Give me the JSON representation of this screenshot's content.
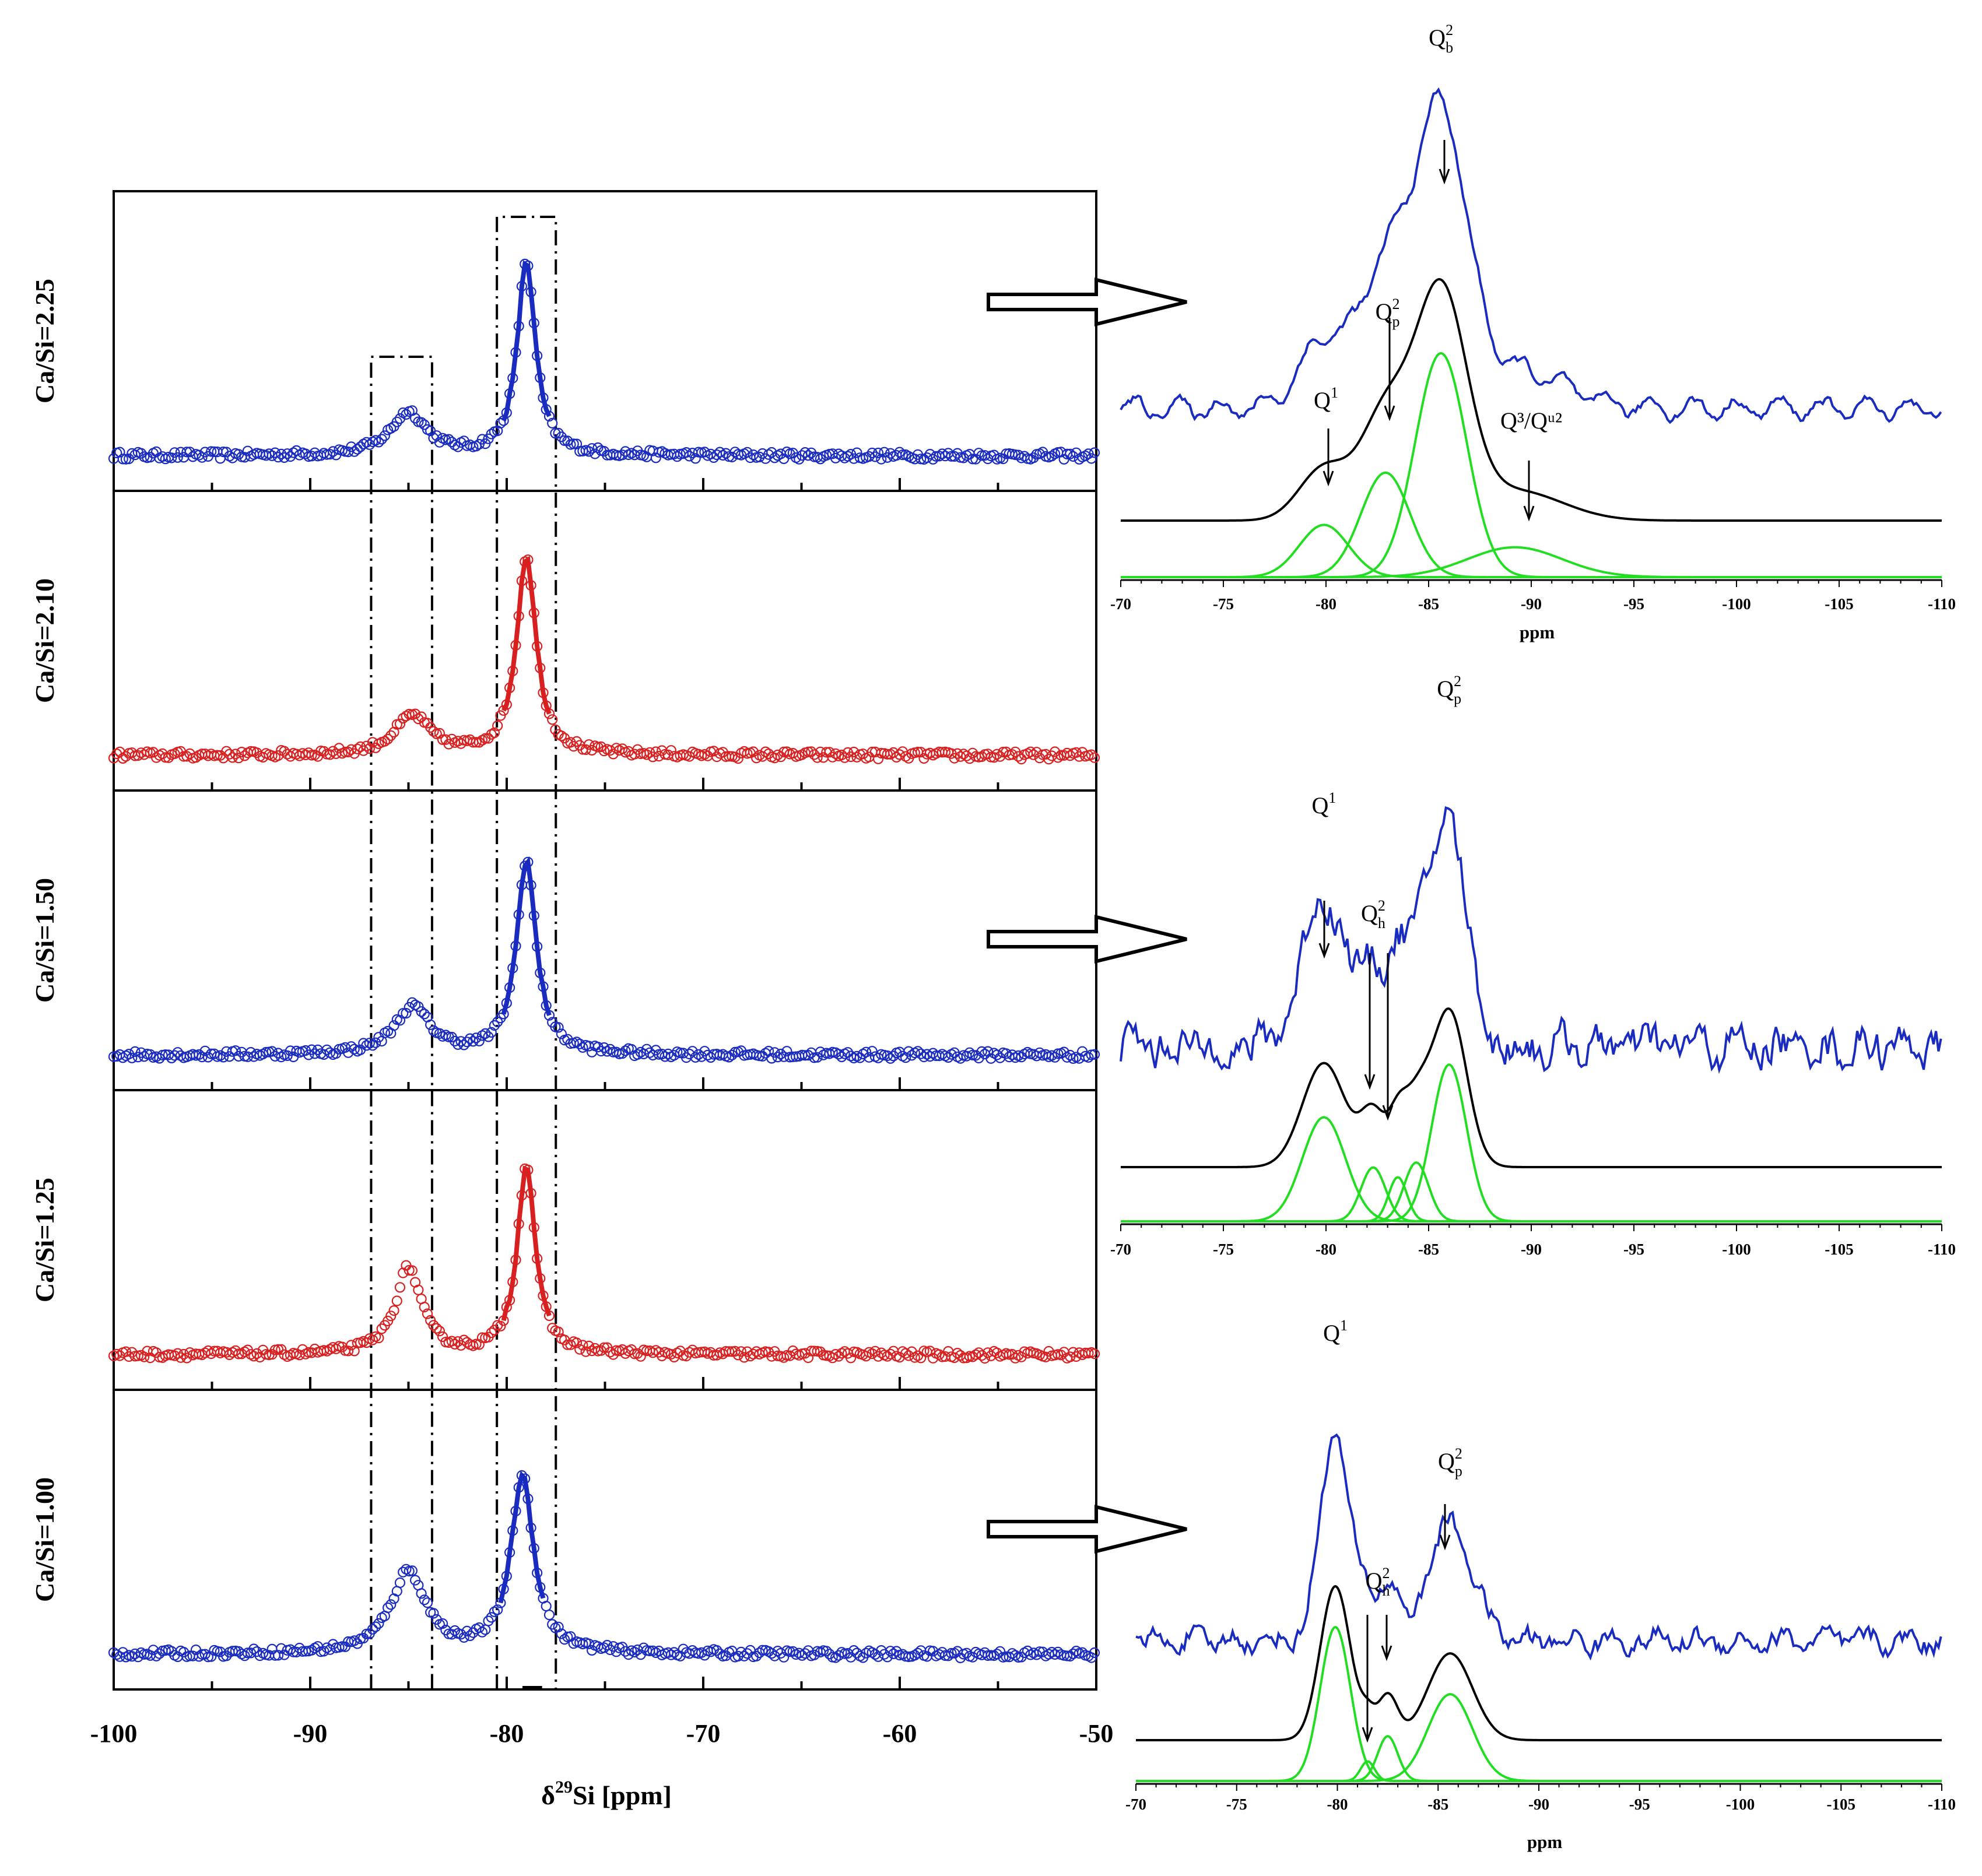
{
  "colors": {
    "blue": "#1a2bc0",
    "red": "#d92020",
    "green": "#22dd22",
    "black": "#000000"
  },
  "chart_data": [
    {
      "type": "scatter",
      "title": "",
      "xlabel_parts": {
        "pre": "δ",
        "sup": "29",
        "post": "Si [ppm]"
      },
      "xlim": [
        -100,
        -50
      ],
      "xticks": [
        -100,
        -90,
        -80,
        -70,
        -60,
        -50
      ],
      "row_labels": [
        "Ca/Si=2.25",
        "Ca/Si=2.10",
        "Ca/Si=1.50",
        "Ca/Si=1.25",
        "Ca/Si=1.00"
      ],
      "series": [
        {
          "name": "Ca/Si=2.25",
          "color": "blue",
          "peaks": [
            {
              "x": -79.0,
              "height": 0.9,
              "width": 0.55
            },
            {
              "x": -85.0,
              "height": 0.2,
              "width": 1.1
            }
          ]
        },
        {
          "name": "Ca/Si=2.10",
          "color": "red",
          "peaks": [
            {
              "x": -79.0,
              "height": 0.92,
              "width": 0.6
            },
            {
              "x": -84.8,
              "height": 0.18,
              "width": 1.1
            }
          ]
        },
        {
          "name": "Ca/Si=1.50",
          "color": "blue",
          "peaks": [
            {
              "x": -79.0,
              "height": 0.9,
              "width": 0.6
            },
            {
              "x": -84.8,
              "height": 0.22,
              "width": 1.1
            }
          ]
        },
        {
          "name": "Ca/Si=1.25",
          "color": "red",
          "peaks": [
            {
              "x": -79.0,
              "height": 0.88,
              "width": 0.55
            },
            {
              "x": -85.0,
              "height": 0.4,
              "width": 0.8
            }
          ]
        },
        {
          "name": "Ca/Si=1.00",
          "color": "blue",
          "peaks": [
            {
              "x": -79.2,
              "height": 0.82,
              "width": 0.7
            },
            {
              "x": -85.0,
              "height": 0.38,
              "width": 1.1
            }
          ]
        }
      ],
      "annotation_boxes_ppm": [
        [
          -86.9,
          -83.8
        ],
        [
          -80.5,
          -77.5
        ]
      ]
    },
    {
      "type": "line",
      "xlabel": "ppm",
      "xlim": [
        -70,
        -110
      ],
      "xticks": [
        -70,
        -75,
        -80,
        -85,
        -90,
        -95,
        -100,
        -105,
        -110
      ],
      "components": [
        {
          "center": -79.9,
          "height": 0.28,
          "width": 1.2
        },
        {
          "center": -82.9,
          "height": 0.56,
          "width": 1.2
        },
        {
          "center": -85.6,
          "height": 1.2,
          "width": 1.25
        },
        {
          "center": -89.2,
          "height": 0.16,
          "width": 2.3
        }
      ],
      "labels": [
        {
          "base": "Q",
          "sup": "2",
          "sub": "b",
          "x": -85.6
        },
        {
          "base": "Q",
          "sup": "2",
          "sub": "p",
          "x": -83.0
        },
        {
          "base": "Q",
          "sup": "1",
          "sub": "",
          "x": -80.0
        },
        {
          "text": "Q³/Qᵘ²",
          "x": -90.0
        }
      ]
    },
    {
      "type": "line",
      "xlabel": "ppm",
      "xlim": [
        -70,
        -110
      ],
      "xticks": [
        -70,
        -75,
        -80,
        -85,
        -90,
        -95,
        -100,
        -105,
        -110
      ],
      "components": [
        {
          "center": -79.9,
          "height": 0.85,
          "width": 1.05
        },
        {
          "center": -82.3,
          "height": 0.44,
          "width": 0.6
        },
        {
          "center": -83.5,
          "height": 0.36,
          "width": 0.45
        },
        {
          "center": -84.4,
          "height": 0.48,
          "width": 0.6
        },
        {
          "center": -86.0,
          "height": 1.28,
          "width": 0.85
        }
      ],
      "labels": [
        {
          "base": "Q",
          "sup": "2",
          "sub": "p",
          "x": -86.0
        },
        {
          "base": "Q",
          "sup": "1",
          "sub": "",
          "x": -79.9
        },
        {
          "base": "Q",
          "sup": "2",
          "sub": "h",
          "x": -82.3
        }
      ]
    },
    {
      "type": "line",
      "xlabel": "ppm",
      "xlim": [
        -70,
        -110
      ],
      "xticks": [
        -70,
        -75,
        -80,
        -85,
        -90,
        -95,
        -100,
        -105,
        -110
      ],
      "components": [
        {
          "center": -79.9,
          "height": 1.1,
          "width": 0.75
        },
        {
          "center": -81.5,
          "height": 0.14,
          "width": 0.35
        },
        {
          "center": -82.5,
          "height": 0.32,
          "width": 0.5
        },
        {
          "center": -85.6,
          "height": 0.62,
          "width": 1.1
        }
      ],
      "labels": [
        {
          "base": "Q",
          "sup": "1",
          "sub": "",
          "x": -79.9
        },
        {
          "base": "Q",
          "sup": "2",
          "sub": "p",
          "x": -85.6
        },
        {
          "base": "Q",
          "sup": "2",
          "sub": "h",
          "x": -82.0
        }
      ]
    }
  ]
}
